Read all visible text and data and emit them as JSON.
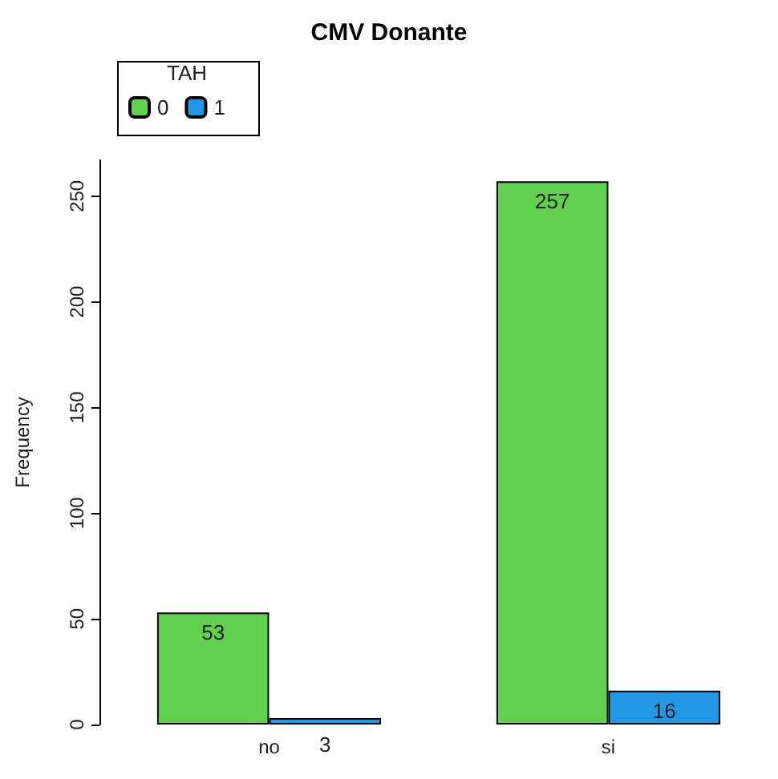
{
  "chart_data": {
    "type": "bar",
    "title": "CMV Donante",
    "ylabel": "Frequency",
    "legend_title": "TAH",
    "categories": [
      "no",
      "si"
    ],
    "series": [
      {
        "name": "0",
        "color": "#61d04f",
        "values": [
          53,
          257
        ]
      },
      {
        "name": "1",
        "color": "#2297e6",
        "values": [
          3,
          16
        ]
      }
    ],
    "ylim": [
      0,
      267
    ],
    "yticks": [
      0,
      50,
      100,
      150,
      200,
      250
    ],
    "grid": false,
    "legend": "top left",
    "data_labels": true
  }
}
